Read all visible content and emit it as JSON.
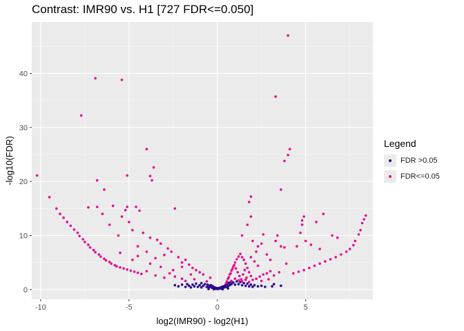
{
  "title": "Contrast: IMR90 vs. H1 [727 FDR<=0.050]",
  "legend": {
    "title": "Legend",
    "items": [
      {
        "label": "FDR >0.05",
        "color": "#29078a"
      },
      {
        "label": "FDR<=0.05",
        "color": "#e30b8b"
      }
    ]
  },
  "chart_data": {
    "type": "scatter",
    "title": "Contrast: IMR90 vs. H1 [727 FDR<=0.050]",
    "xlabel": "log2(IMR90) - log2(H1)",
    "ylabel": "-log10(FDR)",
    "xlim": [
      -10.5,
      8.8
    ],
    "ylim": [
      -1.8,
      49.5
    ],
    "xticks": [
      -10,
      -5,
      0,
      5
    ],
    "yticks": [
      0,
      10,
      20,
      30,
      40
    ],
    "grid": true,
    "legend_position": "right",
    "background": "#ebebeb",
    "series": [
      {
        "name": "FDR >0.05",
        "color": "#29078a",
        "points": [
          [
            -2.4,
            0.8
          ],
          [
            -2.2,
            0.6
          ],
          [
            -2.0,
            0.9
          ],
          [
            -1.8,
            0.5
          ],
          [
            -1.7,
            1.0
          ],
          [
            -1.6,
            0.7
          ],
          [
            -1.5,
            0.4
          ],
          [
            -1.4,
            0.9
          ],
          [
            -1.3,
            0.6
          ],
          [
            -1.2,
            1.1
          ],
          [
            -1.1,
            0.5
          ],
          [
            -1.0,
            0.8
          ],
          [
            -0.9,
            1.2
          ],
          [
            -0.9,
            0.4
          ],
          [
            -0.8,
            0.7
          ],
          [
            -0.7,
            1.0
          ],
          [
            -0.6,
            0.5
          ],
          [
            -0.55,
            0.9
          ],
          [
            -0.5,
            0.3
          ],
          [
            -0.45,
            0.7
          ],
          [
            -0.4,
            0.5
          ],
          [
            -0.35,
            0.8
          ],
          [
            -0.3,
            0.3
          ],
          [
            -0.25,
            0.6
          ],
          [
            -0.2,
            0.2
          ],
          [
            -0.15,
            0.4
          ],
          [
            -0.1,
            0.15
          ],
          [
            -0.05,
            0.3
          ],
          [
            0.0,
            0.1
          ],
          [
            0.05,
            0.25
          ],
          [
            0.1,
            0.15
          ],
          [
            0.15,
            0.35
          ],
          [
            0.2,
            0.2
          ],
          [
            0.25,
            0.5
          ],
          [
            0.3,
            0.3
          ],
          [
            0.35,
            0.6
          ],
          [
            0.4,
            0.4
          ],
          [
            0.45,
            0.8
          ],
          [
            0.5,
            0.5
          ],
          [
            0.55,
            1.0
          ],
          [
            0.6,
            0.6
          ],
          [
            0.65,
            1.2
          ],
          [
            0.7,
            0.8
          ],
          [
            0.75,
            1.4
          ],
          [
            0.8,
            1.0
          ],
          [
            0.9,
            1.3
          ],
          [
            1.0,
            0.9
          ],
          [
            1.1,
            1.5
          ],
          [
            1.2,
            1.0
          ],
          [
            1.3,
            1.4
          ],
          [
            1.4,
            0.8
          ],
          [
            1.5,
            1.2
          ],
          [
            1.6,
            0.7
          ],
          [
            1.7,
            1.1
          ],
          [
            1.8,
            0.6
          ],
          [
            1.9,
            0.9
          ],
          [
            2.0,
            0.5
          ],
          [
            2.1,
            0.8
          ],
          [
            2.3,
            0.6
          ],
          [
            2.5,
            0.7
          ],
          [
            2.7,
            0.5
          ],
          [
            3.1,
            0.6
          ],
          [
            3.2,
            1.0
          ],
          [
            3.6,
            0.7
          ],
          [
            -0.5,
            0.1
          ],
          [
            0.3,
            0.05
          ],
          [
            -0.2,
            0.05
          ],
          [
            0.6,
            0.2
          ]
        ]
      },
      {
        "name": "FDR<=0.05",
        "color": "#e30b8b",
        "points": [
          [
            -10.2,
            21.1
          ],
          [
            -9.5,
            17.1
          ],
          [
            -9.1,
            15.0
          ],
          [
            -8.9,
            14.0
          ],
          [
            -8.7,
            13.3
          ],
          [
            -8.5,
            12.5
          ],
          [
            -8.3,
            11.8
          ],
          [
            -8.1,
            11.1
          ],
          [
            -7.9,
            10.5
          ],
          [
            -7.8,
            9.9
          ],
          [
            -7.6,
            9.3
          ],
          [
            -7.5,
            8.8
          ],
          [
            -7.3,
            8.3
          ],
          [
            -7.2,
            7.8
          ],
          [
            -7.0,
            7.3
          ],
          [
            -6.9,
            6.9
          ],
          [
            -6.7,
            6.5
          ],
          [
            -6.6,
            6.1
          ],
          [
            -6.4,
            5.7
          ],
          [
            -6.3,
            5.4
          ],
          [
            -6.1,
            5.1
          ],
          [
            -6.0,
            4.8
          ],
          [
            -5.8,
            4.5
          ],
          [
            -5.7,
            4.3
          ],
          [
            -5.5,
            4.1
          ],
          [
            -5.3,
            3.9
          ],
          [
            -5.1,
            3.7
          ],
          [
            -4.9,
            3.5
          ],
          [
            -4.7,
            3.3
          ],
          [
            -4.5,
            3.1
          ],
          [
            -4.3,
            2.9
          ],
          [
            -7.7,
            32.2
          ],
          [
            -6.9,
            39.1
          ],
          [
            -5.4,
            38.8
          ],
          [
            -4.0,
            26.0
          ],
          [
            -3.6,
            22.6
          ],
          [
            -3.8,
            21.0
          ],
          [
            -5.1,
            21.1
          ],
          [
            -6.8,
            20.2
          ],
          [
            -6.4,
            18.5
          ],
          [
            -3.7,
            20.2
          ],
          [
            -7.3,
            15.2
          ],
          [
            -6.8,
            15.3
          ],
          [
            -5.9,
            15.5
          ],
          [
            -5.2,
            14.7
          ],
          [
            -5.1,
            15.3
          ],
          [
            -4.6,
            15.3
          ],
          [
            -4.4,
            14.6
          ],
          [
            -2.4,
            15.0
          ],
          [
            -6.5,
            14.0
          ],
          [
            -5.4,
            13.5
          ],
          [
            -5.0,
            12.5
          ],
          [
            -6.1,
            12.0
          ],
          [
            -4.8,
            11.0
          ],
          [
            -4.2,
            10.5
          ],
          [
            -5.6,
            10.0
          ],
          [
            -3.8,
            9.6
          ],
          [
            -3.4,
            9.2
          ],
          [
            -3.2,
            8.5
          ],
          [
            -4.5,
            8.0
          ],
          [
            -2.8,
            7.6
          ],
          [
            -2.6,
            7.0
          ],
          [
            -3.0,
            6.4
          ],
          [
            -2.2,
            6.0
          ],
          [
            -1.8,
            5.5
          ],
          [
            -2.0,
            5.0
          ],
          [
            -1.6,
            4.6
          ],
          [
            -1.4,
            4.0
          ],
          [
            -1.2,
            3.6
          ],
          [
            -1.0,
            3.2
          ],
          [
            -1.5,
            2.8
          ],
          [
            -2.4,
            2.4
          ],
          [
            -3.5,
            2.6
          ],
          [
            -4.0,
            3.4
          ],
          [
            -3.0,
            2.2
          ],
          [
            -2.0,
            2.0
          ],
          [
            -1.8,
            1.6
          ],
          [
            -4.8,
            5.5
          ],
          [
            -3.8,
            4.8
          ],
          [
            -3.2,
            4.2
          ],
          [
            -2.5,
            3.6
          ],
          [
            -5.5,
            6.8
          ],
          [
            -4.5,
            6.2
          ],
          [
            -3.5,
            5.8
          ],
          [
            -4.0,
            7.0
          ],
          [
            -2.0,
            4.2
          ],
          [
            -1.3,
            1.9
          ],
          [
            -2.7,
            3.0
          ],
          [
            -0.4,
            2.2
          ],
          [
            -0.6,
            1.5
          ],
          [
            -0.8,
            2.8
          ],
          [
            0.5,
            1.2
          ],
          [
            0.6,
            2.0
          ],
          [
            0.7,
            2.8
          ],
          [
            0.8,
            3.5
          ],
          [
            0.9,
            4.2
          ],
          [
            1.0,
            5.0
          ],
          [
            1.1,
            5.6
          ],
          [
            1.2,
            6.1
          ],
          [
            1.3,
            6.6
          ],
          [
            1.4,
            6.0
          ],
          [
            1.5,
            5.5
          ],
          [
            1.6,
            4.8
          ],
          [
            1.7,
            4.0
          ],
          [
            1.8,
            3.2
          ],
          [
            1.9,
            2.5
          ],
          [
            2.0,
            1.8
          ],
          [
            0.55,
            1.5
          ],
          [
            0.65,
            2.3
          ],
          [
            0.75,
            3.0
          ],
          [
            0.85,
            3.8
          ],
          [
            0.95,
            4.5
          ],
          [
            1.05,
            3.9
          ],
          [
            1.15,
            3.2
          ],
          [
            1.25,
            2.5
          ],
          [
            1.35,
            1.9
          ],
          [
            1.45,
            2.8
          ],
          [
            1.55,
            3.6
          ],
          [
            1.65,
            2.2
          ],
          [
            0.8,
            1.6
          ],
          [
            1.0,
            2.0
          ],
          [
            1.2,
            1.7
          ],
          [
            1.4,
            1.5
          ],
          [
            1.6,
            1.8
          ],
          [
            1.8,
            1.4
          ],
          [
            2.2,
            2.0
          ],
          [
            2.4,
            2.4
          ],
          [
            2.6,
            2.8
          ],
          [
            2.8,
            3.0
          ],
          [
            3.0,
            3.4
          ],
          [
            3.2,
            2.6
          ],
          [
            2.5,
            1.6
          ],
          [
            2.9,
            1.9
          ],
          [
            1.9,
            6.0
          ],
          [
            2.1,
            5.2
          ],
          [
            2.3,
            4.4
          ],
          [
            2.2,
            7.0
          ],
          [
            2.5,
            8.5
          ],
          [
            2.0,
            9.0
          ],
          [
            1.4,
            10.0
          ],
          [
            1.7,
            12.0
          ],
          [
            1.9,
            13.5
          ],
          [
            1.8,
            16.2
          ],
          [
            1.9,
            17.2
          ],
          [
            2.3,
            8.0
          ],
          [
            2.6,
            10.2
          ],
          [
            2.8,
            6.5
          ],
          [
            3.0,
            5.5
          ],
          [
            3.3,
            9.0
          ],
          [
            3.4,
            10.0
          ],
          [
            3.6,
            8.0
          ],
          [
            3.8,
            7.8
          ],
          [
            3.3,
            35.7
          ],
          [
            4.0,
            47.0
          ],
          [
            4.1,
            26.0
          ],
          [
            3.8,
            23.8
          ],
          [
            4.0,
            24.9
          ],
          [
            3.6,
            18.5
          ],
          [
            4.3,
            3.0
          ],
          [
            4.6,
            3.3
          ],
          [
            4.9,
            3.6
          ],
          [
            5.2,
            4.0
          ],
          [
            5.5,
            4.4
          ],
          [
            5.8,
            4.8
          ],
          [
            6.1,
            5.2
          ],
          [
            6.4,
            5.6
          ],
          [
            6.7,
            6.0
          ],
          [
            7.0,
            6.5
          ],
          [
            7.3,
            7.0
          ],
          [
            7.5,
            7.5
          ],
          [
            7.7,
            8.2
          ],
          [
            7.8,
            9.0
          ],
          [
            8.0,
            10.2
          ],
          [
            8.1,
            11.0
          ],
          [
            8.2,
            12.3
          ],
          [
            8.3,
            13.0
          ],
          [
            8.4,
            13.7
          ],
          [
            4.8,
            12.0
          ],
          [
            4.8,
            12.8
          ],
          [
            4.9,
            13.5
          ],
          [
            5.6,
            12.5
          ],
          [
            6.0,
            14.0
          ],
          [
            6.5,
            10.0
          ],
          [
            4.7,
            10.5
          ],
          [
            5.3,
            8.3
          ],
          [
            5.8,
            7.5
          ],
          [
            6.8,
            9.6
          ],
          [
            5.0,
            9.0
          ],
          [
            4.5,
            8.0
          ],
          [
            3.9,
            4.8
          ],
          [
            3.5,
            3.2
          ]
        ]
      }
    ]
  }
}
